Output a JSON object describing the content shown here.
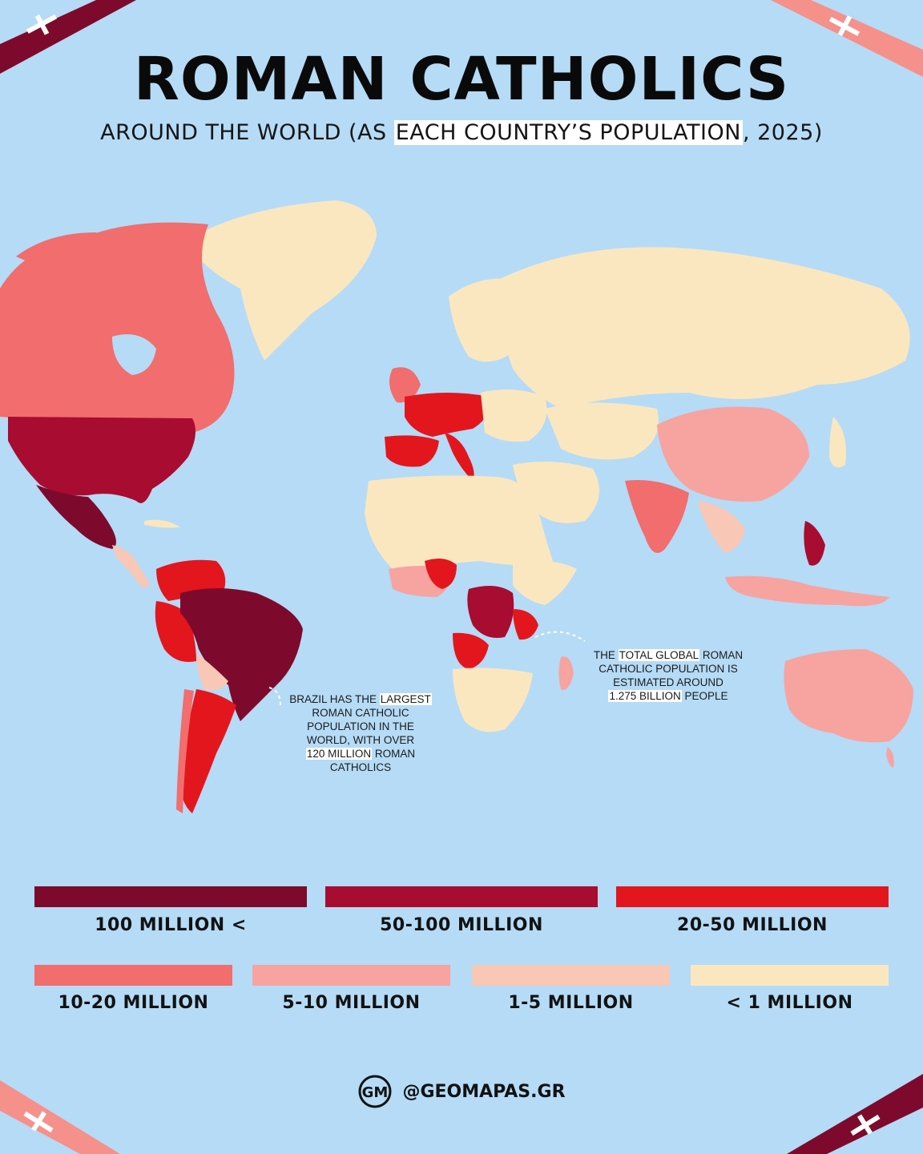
{
  "header": {
    "title": "ROMAN CATHOLICS",
    "subtitle_pre": "AROUND THE WORLD (AS ",
    "subtitle_highlight": "EACH COUNTRY’S POPULATION",
    "subtitle_post": ", 2025)"
  },
  "annotations": {
    "brazil": {
      "line1_pre": "BRAZIL",
      "line1_mid": " HAS THE ",
      "line1_highlight": "LARGEST",
      "line2": "ROMAN CATHOLIC",
      "line3": "POPULATION IN THE",
      "line4": "WORLD, WITH OVER",
      "line5_highlight": "120 MILLION",
      "line5_post": " ROMAN",
      "line6": "CATHOLICS"
    },
    "global": {
      "line1_pre": "THE ",
      "line1_highlight": "TOTAL GLOBAL",
      "line1_post": " ROMAN",
      "line2": "CATHOLIC POPULATION IS",
      "line3": "ESTIMATED AROUND",
      "line4_highlight": "1.275 BILLION",
      "line4_post": " PEOPLE"
    }
  },
  "legend": [
    {
      "label": "100 MILLION <",
      "color": "#7d0a2c"
    },
    {
      "label": "50-100 MILLION",
      "color": "#a80c30"
    },
    {
      "label": "20-50 MILLION",
      "color": "#e3161e"
    },
    {
      "label": "10-20 MILLION",
      "color": "#f26d6d"
    },
    {
      "label": "5-10 MILLION",
      "color": "#f7a3a0"
    },
    {
      "label": "1-5 MILLION",
      "color": "#f9c7b6"
    },
    {
      "label": "< 1 MILLION",
      "color": "#fbe7bf"
    }
  ],
  "footer": {
    "logo": "GM",
    "handle": "@GEOMAPAS.GR"
  },
  "colors": {
    "ocean": "#b5dbf6",
    "ribbon_dark": "#7d0a2c",
    "ribbon_light": "#f6908a"
  },
  "icons": [
    "cross-icon",
    "geomapas-logo-icon"
  ]
}
